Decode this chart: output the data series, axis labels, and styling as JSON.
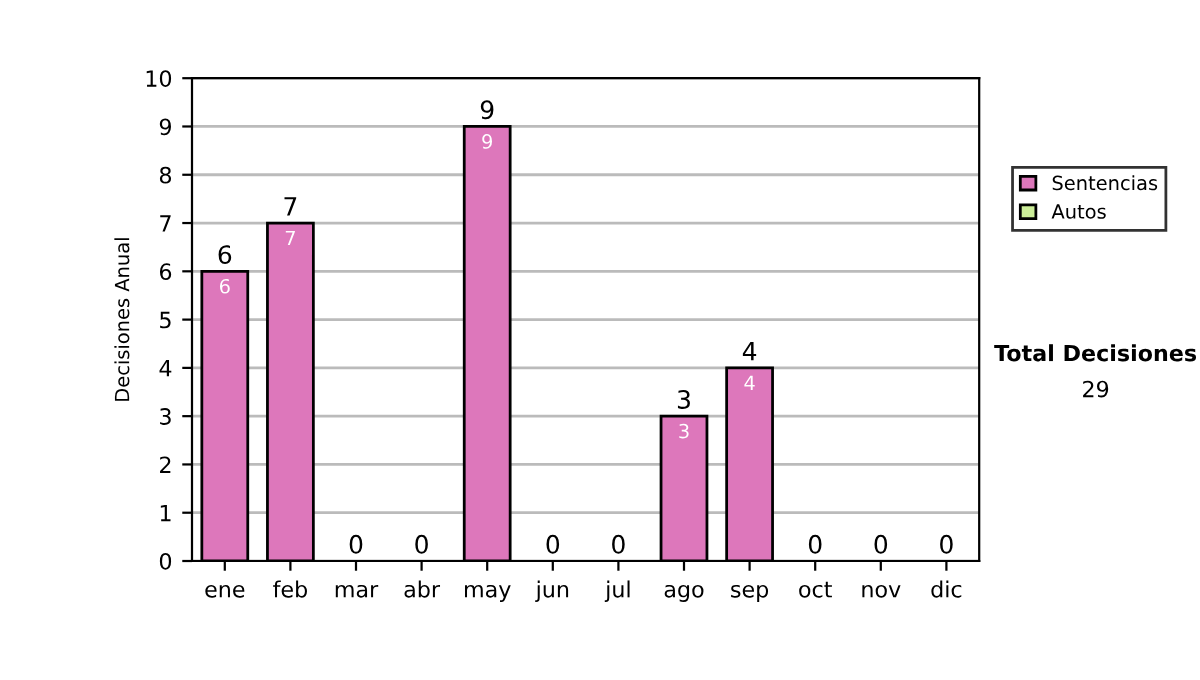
{
  "chart_data": {
    "type": "bar",
    "ylabel": "Decisiones Anual",
    "stacked": true,
    "categories": [
      "ene",
      "feb",
      "mar",
      "abr",
      "may",
      "jun",
      "jul",
      "ago",
      "sep",
      "oct",
      "nov",
      "dic"
    ],
    "series": [
      {
        "name": "Sentencias",
        "color": "#dd77bb",
        "values": [
          6,
          7,
          0,
          0,
          9,
          0,
          0,
          3,
          4,
          0,
          0,
          0
        ],
        "value_labels": [
          "6",
          "7",
          null,
          null,
          "9",
          null,
          null,
          "3",
          "4",
          null,
          null,
          null
        ]
      },
      {
        "name": "Autos",
        "color": "#ccee99",
        "values": [
          0,
          0,
          0,
          0,
          0,
          0,
          0,
          0,
          0,
          0,
          0,
          0
        ]
      }
    ],
    "totals": [
      "6",
      "7",
      "0",
      "0",
      "9",
      "0",
      "0",
      "3",
      "4",
      "0",
      "0",
      "0"
    ],
    "ylim": [
      0,
      10
    ],
    "yticks": [
      0,
      1,
      2,
      3,
      4,
      5,
      6,
      7,
      8,
      9,
      10
    ],
    "grid": "y",
    "legend": "right",
    "annotations": [
      "Total Decisiones",
      "29"
    ]
  }
}
